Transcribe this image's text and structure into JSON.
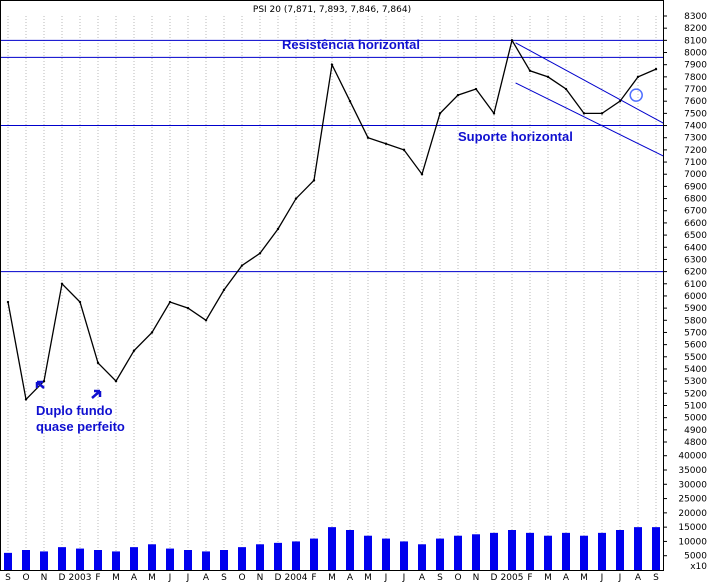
{
  "chart_data": {
    "type": "line",
    "title": "PSI 20 (7,871, 7,893, 7,846, 7,864)",
    "price_axis": {
      "ylim": [
        4800,
        8300
      ],
      "ticks": [
        4800,
        4900,
        5000,
        5100,
        5200,
        5300,
        5400,
        5500,
        5600,
        5700,
        5800,
        5900,
        6000,
        6100,
        6200,
        6300,
        6400,
        6500,
        6600,
        6700,
        6800,
        6900,
        7000,
        7100,
        7200,
        7300,
        7400,
        7500,
        7600,
        7700,
        7800,
        7900,
        8000,
        8100,
        8200,
        8300
      ]
    },
    "volume_axis": {
      "ylim": [
        0,
        42000
      ],
      "ticks": [
        5000,
        10000,
        15000,
        20000,
        25000,
        30000,
        35000,
        40000
      ],
      "unit_label": "x10"
    },
    "x_axis": {
      "labels": [
        "S",
        "O",
        "N",
        "D",
        "2003",
        "F",
        "M",
        "A",
        "M",
        "J",
        "J",
        "A",
        "S",
        "O",
        "N",
        "D",
        "2004",
        "F",
        "M",
        "A",
        "M",
        "J",
        "J",
        "A",
        "S",
        "O",
        "N",
        "D",
        "2005",
        "F",
        "M",
        "A",
        "M",
        "J",
        "J",
        "A",
        "S"
      ],
      "grid": true
    },
    "series": [
      {
        "x": [
          0,
          1,
          2,
          3,
          4,
          5,
          6,
          7,
          8,
          9,
          10,
          11,
          12,
          13,
          14,
          15,
          16,
          17,
          18,
          19,
          20,
          21,
          22,
          23,
          24,
          25,
          26,
          27,
          28,
          29,
          30,
          31,
          32,
          33,
          34,
          35,
          36
        ],
        "values": [
          5950,
          5150,
          5300,
          6100,
          5950,
          5450,
          5300,
          5550,
          5700,
          5950,
          5900,
          5800,
          6050,
          6250,
          6350,
          6550,
          6800,
          6950,
          7900,
          7600,
          7300,
          7250,
          7200,
          7000,
          7500,
          7650,
          7700,
          7500,
          8100,
          7850,
          7800,
          7700,
          7500,
          7500,
          7600,
          7800,
          7864
        ]
      }
    ],
    "horizontal_lines": [
      7960,
      8100,
      7400,
      6200
    ],
    "trend_channel": {
      "upper": {
        "x": [
          28.2,
          36.4
        ],
        "y": [
          8080,
          7420
        ]
      },
      "lower": {
        "x": [
          28.2,
          36.4
        ],
        "y": [
          7750,
          7150
        ]
      }
    },
    "circle_marker": {
      "x": 34.9,
      "y": 7650
    },
    "annotations": [
      {
        "text": "Resistência horizontal"
      },
      {
        "text": "Suporte horizontal"
      },
      {
        "text": "Duplo fundo"
      },
      {
        "text": "quase perfeito"
      }
    ],
    "volume": {
      "x": [
        0,
        1,
        2,
        3,
        4,
        5,
        6,
        7,
        8,
        9,
        10,
        11,
        12,
        13,
        14,
        15,
        16,
        17,
        18,
        19,
        20,
        21,
        22,
        23,
        24,
        25,
        26,
        27,
        28,
        29,
        30,
        31,
        32,
        33,
        34,
        35,
        36
      ],
      "values": [
        6000,
        7000,
        6500,
        8000,
        7500,
        7000,
        6500,
        8000,
        9000,
        7500,
        7000,
        6500,
        7000,
        8000,
        9000,
        9500,
        10000,
        11000,
        15000,
        14000,
        12000,
        11000,
        10000,
        9000,
        11000,
        12000,
        12500,
        13000,
        14000,
        13000,
        12000,
        13000,
        12000,
        13000,
        14000,
        15000,
        15000
      ]
    },
    "colors": {
      "price": "#000000",
      "lines": "#0000cc",
      "annotation": "#1010d0",
      "volume": "#0000ee",
      "grid": "#b8b8b8"
    }
  }
}
